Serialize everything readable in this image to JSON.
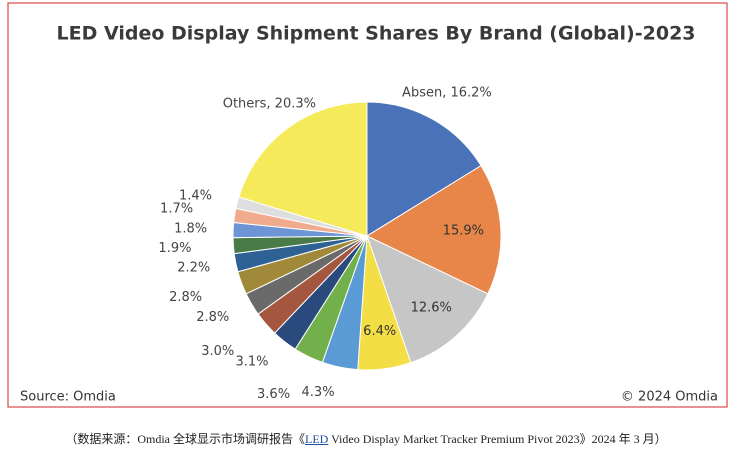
{
  "chart_data": {
    "type": "pie",
    "title": "LED Video Display Shipment Shares By Brand (Global)-2023",
    "values": [
      16.2,
      15.9,
      12.6,
      6.4,
      4.3,
      3.6,
      3.1,
      3.0,
      2.8,
      2.8,
      2.2,
      1.9,
      1.8,
      1.7,
      1.4,
      20.3
    ],
    "value_labels": [
      "Absen, 16.2%",
      "15.9%",
      "12.6%",
      "6.4%",
      "4.3%",
      "3.6%",
      "3.1%",
      "3.0%",
      "2.8%",
      "2.8%",
      "2.2%",
      "1.9%",
      "1.8%",
      "1.7%",
      "1.4%",
      "Others, 20.3%"
    ],
    "colors": [
      "#4a72b8",
      "#e8864a",
      "#c6c6c6",
      "#f4de45",
      "#5b9bd5",
      "#72b04c",
      "#2a4a7e",
      "#a4573e",
      "#6a6a6a",
      "#a08a3a",
      "#2f6294",
      "#4a7a48",
      "#6d95d6",
      "#f0aa8e",
      "#dedede",
      "#f5eb5a"
    ],
    "source": "Source: Omdia",
    "copyright": "© 2024 Omdia"
  },
  "caption": {
    "prefix": "（数据来源：Omdia 全球显示市场调研报告《",
    "link": "LED",
    "suffix": " Video Display Market Tracker Premium Pivot 2023》2024 年 3 月）"
  }
}
